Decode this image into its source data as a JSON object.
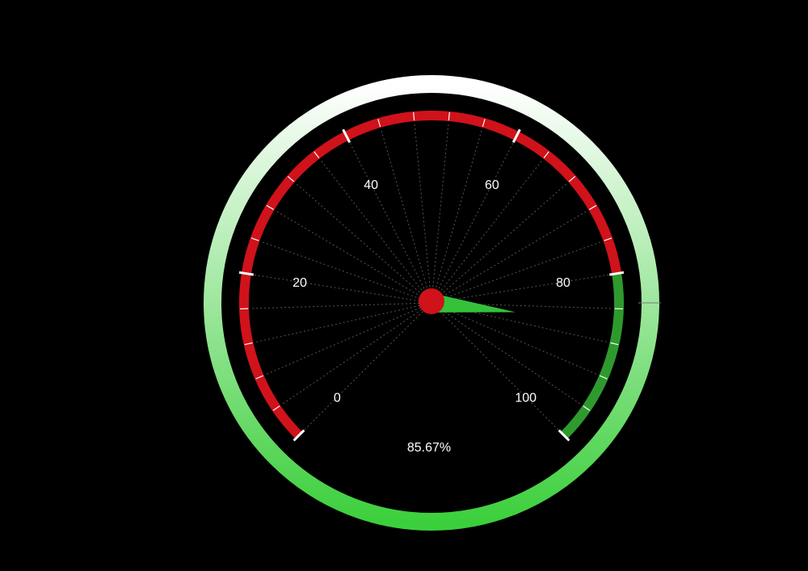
{
  "chart_data": {
    "type": "gauge",
    "min": 0,
    "max": 100,
    "value": 85.67,
    "value_text": "85.67%",
    "tick_labels": [
      "0",
      "20",
      "40",
      "60",
      "80",
      "100"
    ],
    "major_tick_values": [
      0,
      20,
      40,
      60,
      80,
      100
    ],
    "minor_ticks_between_major": 4,
    "bands": [
      {
        "from": 0,
        "to": 80,
        "color": "#d0121b"
      },
      {
        "from": 80,
        "to": 100,
        "color": "#2e9a2e"
      }
    ],
    "outer_ring_colors": [
      "#ffffff",
      "#3ccf3c"
    ],
    "needle_color": "#35c13a",
    "hub_color": "#d0121b",
    "background": "#000000"
  }
}
